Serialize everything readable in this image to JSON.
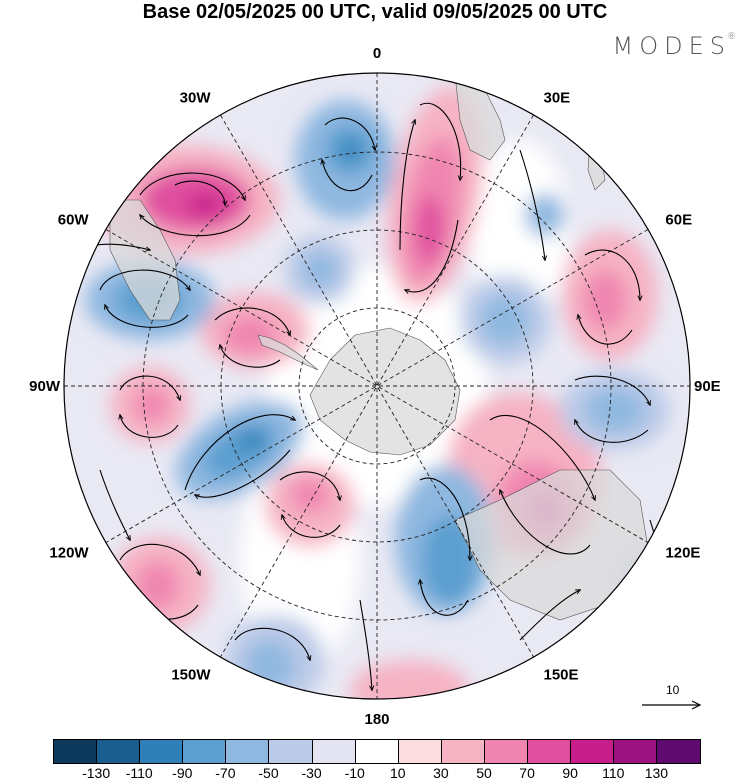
{
  "title": "Base 02/05/2025 00 UTC, valid 09/05/2025 00 UTC",
  "brand": "MODES",
  "brand_mark": "®",
  "projection": "south-polar-stereographic",
  "longitude_labels": [
    {
      "text": "0",
      "lon": 0
    },
    {
      "text": "30E",
      "lon": 30
    },
    {
      "text": "60E",
      "lon": 60
    },
    {
      "text": "90E",
      "lon": 90
    },
    {
      "text": "120E",
      "lon": 120
    },
    {
      "text": "150E",
      "lon": 150
    },
    {
      "text": "180",
      "lon": 180
    },
    {
      "text": "150W",
      "lon": -150
    },
    {
      "text": "120W",
      "lon": -120
    },
    {
      "text": "90W",
      "lon": -90
    },
    {
      "text": "60W",
      "lon": -60
    },
    {
      "text": "30W",
      "lon": -30
    }
  ],
  "vector_scale_label": "10",
  "colorbar": {
    "colors": [
      "#0d3a5c",
      "#1a5e8f",
      "#2f7fb8",
      "#5a9fd0",
      "#8fb8e0",
      "#bccbe8",
      "#e3e3f2",
      "#ffffff",
      "#fbdde2",
      "#f6b3c4",
      "#f086b0",
      "#e04f9f",
      "#c81e8c",
      "#9b1280",
      "#5e0a6e"
    ],
    "tick_labels": [
      "-130",
      "-110",
      "-90",
      "-70",
      "-50",
      "-30",
      "-10",
      "10",
      "30",
      "50",
      "70",
      "90",
      "110",
      "130"
    ]
  },
  "colors": {
    "land": "#d9d9d9",
    "frame": "#000000"
  }
}
